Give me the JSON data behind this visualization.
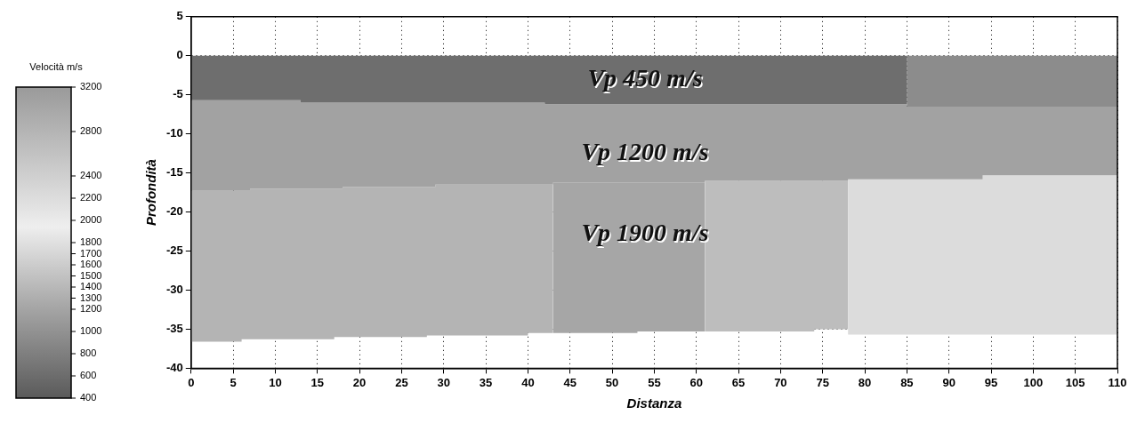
{
  "chart_data": {
    "type": "area",
    "stacked": true,
    "xlabel": "Distanza",
    "ylabel": "Profondità",
    "clabel": "Velocità m/s",
    "cticks": [
      3200,
      2800,
      2400,
      2200,
      2000,
      1800,
      1700,
      1600,
      1500,
      1400,
      1300,
      1200,
      1000,
      800,
      600,
      400
    ],
    "clim": [
      400,
      3200
    ],
    "xlim": [
      0,
      110
    ],
    "xticks": [
      0,
      5,
      10,
      15,
      20,
      25,
      30,
      35,
      40,
      45,
      50,
      55,
      60,
      65,
      70,
      75,
      80,
      85,
      90,
      95,
      100,
      105,
      110
    ],
    "ylim": [
      -40,
      5
    ],
    "yticks": [
      -40,
      -35,
      -30,
      -25,
      -20,
      -15,
      -10,
      -5,
      0,
      5
    ],
    "grid": true,
    "legend": false,
    "x": [
      0,
      6,
      6,
      7,
      7,
      13,
      13,
      17,
      17,
      18,
      18,
      28,
      28,
      29,
      29,
      40,
      40,
      42,
      42,
      43,
      43,
      53,
      53,
      61,
      61,
      74,
      74,
      78,
      78,
      85,
      85,
      94,
      94,
      110
    ],
    "series": [
      {
        "color": "#6e6e6e",
        "values": [
          -5.7,
          -5.7,
          -5.7,
          -5.7,
          -5.7,
          -5.7,
          -6,
          -6,
          -6,
          -6,
          -6,
          -6,
          -6,
          -6,
          -6,
          -6,
          -6,
          -6,
          -6.2,
          -6.2,
          -6.2,
          -6.2,
          -6.2,
          -6.2,
          -6.2,
          -6.2,
          -6.2,
          -6.2,
          -6.2,
          -6.2,
          0,
          0,
          0,
          0
        ]
      },
      {
        "color": "#8c8c8c",
        "values": [
          0,
          0,
          0,
          0,
          0,
          0,
          0,
          0,
          0,
          0,
          0,
          0,
          0,
          0,
          0,
          0,
          0,
          0,
          0,
          0,
          0,
          0,
          0,
          0,
          0,
          0,
          0,
          0,
          0,
          0,
          -6.5,
          -6.5,
          -6.5,
          -6.5
        ]
      },
      {
        "color": "#a2a2a2",
        "values": [
          -11.6,
          -11.6,
          -11.6,
          -11.6,
          -11.3,
          -11.3,
          -11,
          -11,
          -11,
          -11,
          -10.8,
          -10.8,
          -10.8,
          -10.8,
          -10.5,
          -10.5,
          -10.5,
          -10.5,
          -10.3,
          -10.3,
          -10,
          -10,
          -10,
          -10,
          -9.8,
          -9.8,
          -9.8,
          -9.8,
          -9.6,
          -9.6,
          -9.3,
          -9.3,
          -8.8,
          -8.8
        ]
      },
      {
        "color": "#b4b4b4",
        "values": [
          -19.3,
          -19.3,
          -19,
          -19,
          -19.3,
          -19.3,
          -19.3,
          -19.3,
          -19,
          -19,
          -19.2,
          -19.2,
          -19,
          -19,
          -19.3,
          -19.3,
          -19,
          -19,
          -19,
          -19,
          null,
          null,
          null,
          null,
          null,
          null,
          null,
          null,
          null,
          null,
          null,
          null,
          null,
          null
        ]
      },
      {
        "color": "#a6a6a6",
        "values": [
          null,
          null,
          null,
          null,
          null,
          null,
          null,
          null,
          null,
          null,
          null,
          null,
          null,
          null,
          null,
          null,
          null,
          null,
          null,
          null,
          -19.3,
          -19.3,
          -19.1,
          -19.1,
          null,
          null,
          null,
          null,
          null,
          null,
          null,
          null,
          null,
          null
        ]
      },
      {
        "color": "#bdbdbd",
        "values": [
          null,
          null,
          null,
          null,
          null,
          null,
          null,
          null,
          null,
          null,
          null,
          null,
          null,
          null,
          null,
          null,
          null,
          null,
          null,
          null,
          null,
          null,
          null,
          null,
          -19.3,
          -19.3,
          -19,
          -19,
          null,
          null,
          null,
          null,
          null,
          null
        ]
      },
      {
        "color": "#dcdcdc",
        "values": [
          null,
          null,
          null,
          null,
          null,
          null,
          null,
          null,
          null,
          null,
          null,
          null,
          null,
          null,
          null,
          null,
          null,
          null,
          null,
          null,
          null,
          null,
          null,
          null,
          null,
          null,
          null,
          null,
          -19.9,
          -19.9,
          -19.9,
          -19.9,
          -20.4,
          -20.4
        ]
      }
    ],
    "annotations": [
      "Vp 450 m/s",
      "Vp 1200 m/s",
      "Vp 1900 m/s"
    ]
  }
}
